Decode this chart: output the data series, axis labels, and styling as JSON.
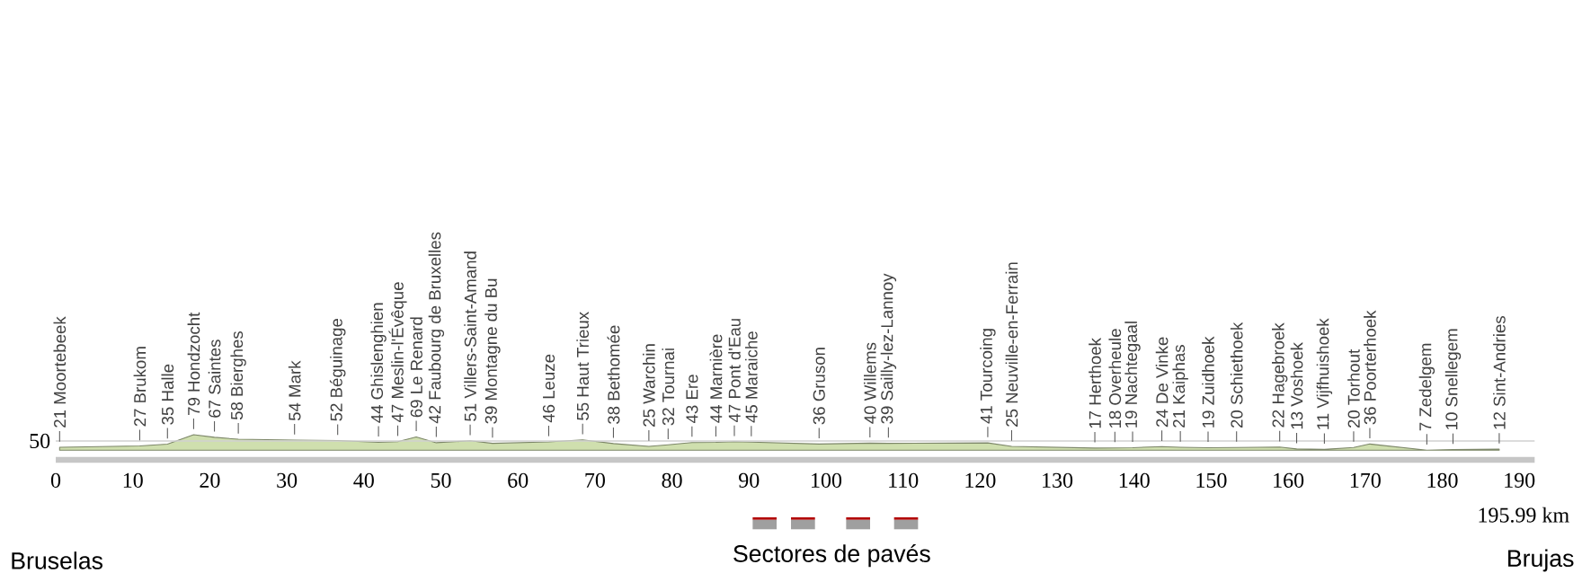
{
  "chart_data": {
    "type": "area",
    "color": "#cfdfae",
    "x": [
      0.5,
      10.9,
      14.5,
      17.9,
      20.6,
      23.7,
      31.0,
      36.6,
      41.9,
      44.4,
      46.8,
      49.4,
      53.8,
      56.7,
      64.0,
      68.4,
      72.4,
      77.0,
      79.5,
      82.6,
      85.7,
      88.1,
      90.3,
      99.1,
      105.7,
      108.1,
      121.0,
      124.1,
      134.9,
      137.5,
      139.8,
      143.6,
      146.0,
      149.6,
      153.3,
      158.9,
      161.1,
      164.7,
      168.5,
      170.6,
      178.0,
      181.4,
      187.4
    ],
    "values": [
      21,
      27,
      35,
      79,
      67,
      58,
      54,
      52,
      44,
      47,
      69,
      42,
      51,
      39,
      46,
      55,
      38,
      25,
      32,
      43,
      44,
      47,
      45,
      36,
      40,
      39,
      41,
      25,
      17,
      18,
      19,
      24,
      21,
      19,
      20,
      22,
      13,
      11,
      20,
      36,
      7,
      10,
      12
    ],
    "value_labels": [
      "21 Moortebeek",
      "27 Brukom",
      "35 Halle",
      "79 Hondzocht",
      "67 Saintes",
      "58 Bierghes",
      "54 Mark",
      "52 Béguinage",
      "44 Ghislenghien",
      "47 Meslin-l'Évêque",
      "69 Le Renard",
      "42 Faubourg de Bruxelles",
      "51 Villers-Saint-Amand",
      "39 Montagne du Bu",
      "46 Leuze",
      "55 Haut Trieux",
      "38 Bethomée",
      "25 Warchin",
      "32 Tournai",
      "43 Ere",
      "44 Marnière",
      "47 Pont d'Eau",
      "45 Maraiche",
      "36 Gruson",
      "40 Willems",
      "39 Sailly-lez-Lannoy",
      "41 Tourcoing",
      "25 Neuville-en-Ferrain",
      "17 Herthoek",
      "18 Overheule",
      "19 Nachtegaal",
      "24 De Vinke",
      "21 Kaiphas",
      "19 Zuidhoek",
      "20 Schiethoek",
      "22 Hagebroek",
      "13 Voshoek",
      "11 Vijfhuishoek",
      "20 Torhout",
      "36 Poorterhoek",
      "7 Zedelgem",
      "10 Snellegem",
      "12 Sint-Andries"
    ],
    "xlim": [
      0,
      192
    ],
    "xticks": [
      0,
      10,
      20,
      30,
      40,
      50,
      60,
      70,
      80,
      90,
      100,
      110,
      120,
      130,
      140,
      150,
      160,
      170,
      180,
      190
    ],
    "ref_lines": [
      {
        "axis": "y",
        "value": 50,
        "label": "50",
        "color": "#d0d0d0"
      }
    ],
    "annotations": [
      "Bruselas",
      "Sectores de pavés",
      "Brujas",
      "195.99 km"
    ]
  }
}
